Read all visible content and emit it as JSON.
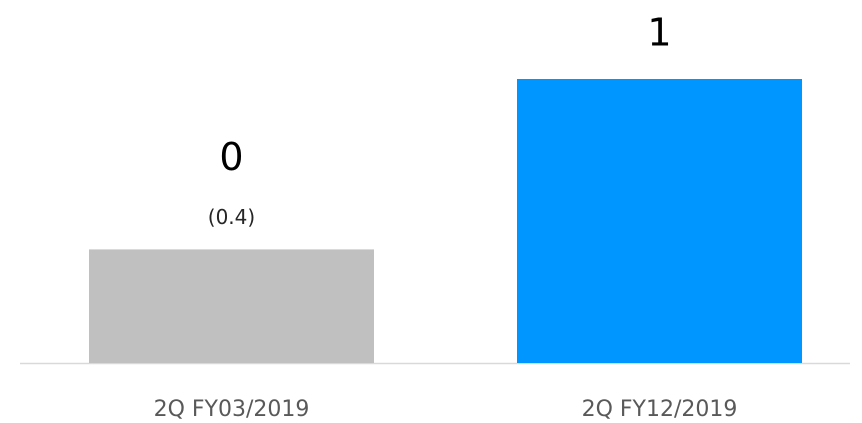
{
  "chart_data": {
    "type": "bar",
    "categories": [
      "2Q FY03/2019",
      "2Q FY12/2019"
    ],
    "values": [
      0.4,
      1
    ],
    "value_labels": [
      "0",
      "1"
    ],
    "annotation": "(0.4)",
    "colors": [
      "#c0c0c0",
      "#0096ff"
    ],
    "ylim": [
      0,
      1
    ]
  }
}
